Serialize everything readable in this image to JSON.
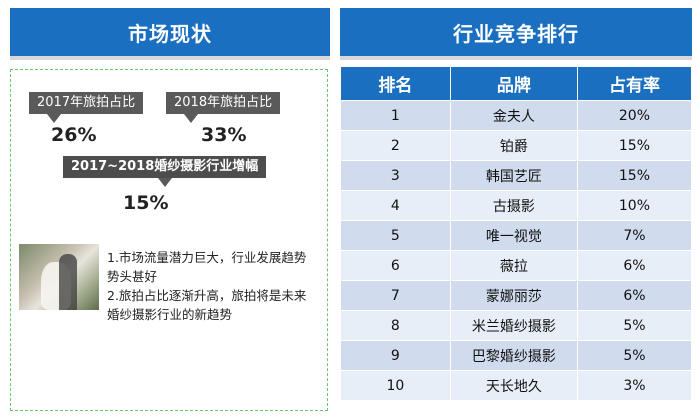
{
  "left_header": {
    "title": "市场现状"
  },
  "right_header": {
    "title": "行业竞争排行"
  },
  "market": {
    "tag_2017": "2017年旅拍占比",
    "value_2017": "26%",
    "tag_2018": "2018年旅拍占比",
    "value_2018": "33%",
    "tag_growth": "2017~2018婚纱摄影行业增幅",
    "value_growth": "15%"
  },
  "notes": {
    "line1": "1.市场流量潜力巨大，行业发展趋势势头甚好",
    "line2": "2.旅拍占比逐渐升高，旅拍将是未来婚纱摄影行业的新趋势"
  },
  "table": {
    "headers": [
      "排名",
      "品牌",
      "占有率"
    ],
    "rows": [
      {
        "rank": "1",
        "brand": "金夫人",
        "share": "20%"
      },
      {
        "rank": "2",
        "brand": "铂爵",
        "share": "15%"
      },
      {
        "rank": "3",
        "brand": "韩国艺匠",
        "share": "15%"
      },
      {
        "rank": "4",
        "brand": "古摄影",
        "share": "10%"
      },
      {
        "rank": "5",
        "brand": "唯一视觉",
        "share": "7%"
      },
      {
        "rank": "6",
        "brand": "薇拉",
        "share": "6%"
      },
      {
        "rank": "7",
        "brand": "蒙娜丽莎",
        "share": "6%"
      },
      {
        "rank": "8",
        "brand": "米兰婚纱摄影",
        "share": "5%"
      },
      {
        "rank": "9",
        "brand": "巴黎婚纱摄影",
        "share": "5%"
      },
      {
        "rank": "10",
        "brand": "天长地久",
        "share": "3%"
      }
    ]
  },
  "colors": {
    "accent": "#1a6fc0",
    "tag_bg": "#5a5a5a",
    "row_odd": "#d0dcee",
    "row_even": "#e8eef7"
  }
}
